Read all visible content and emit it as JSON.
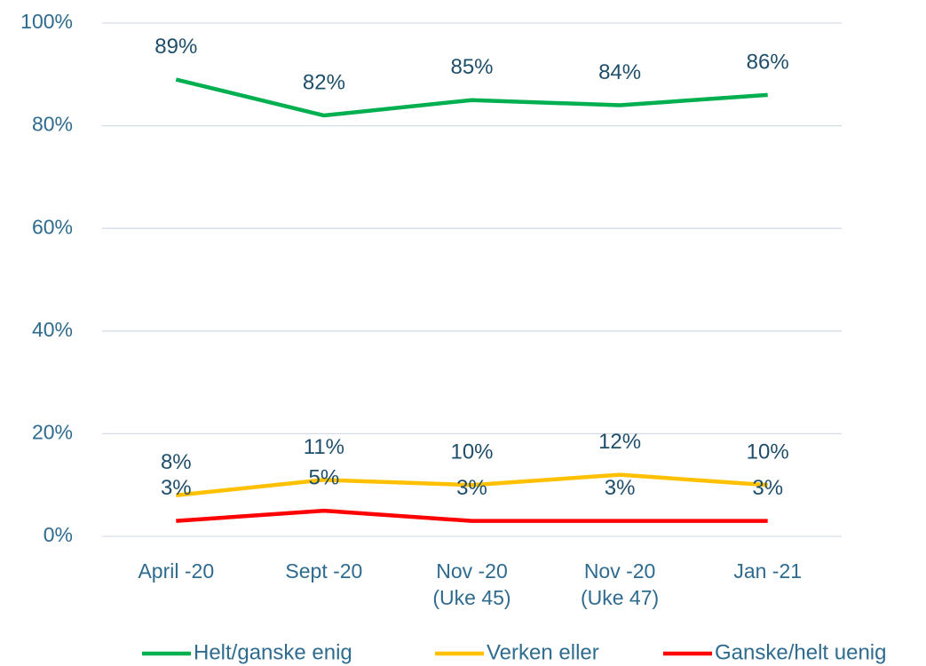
{
  "chart_data": {
    "type": "line",
    "categories": [
      "April -20",
      "Sept -20",
      "Nov -20\n(Uke 45)",
      "Nov -20\n(Uke 47)",
      "Jan -21"
    ],
    "series": [
      {
        "name": "Helt/ganske enig",
        "color": "#00b050",
        "values": [
          89,
          82,
          85,
          84,
          86
        ],
        "value_labels": [
          "89%",
          "82%",
          "85%",
          "84%",
          "86%"
        ]
      },
      {
        "name": "Verken eller",
        "color": "#ffc000",
        "values": [
          8,
          11,
          10,
          12,
          10
        ],
        "value_labels": [
          "8%",
          "11%",
          "10%",
          "12%",
          "10%"
        ]
      },
      {
        "name": "Ganske/helt uenig",
        "color": "#ff0000",
        "values": [
          3,
          5,
          3,
          3,
          3
        ],
        "value_labels": [
          "3%",
          "5%",
          "3%",
          "3%",
          "3%"
        ]
      }
    ],
    "ylim": [
      0,
      100
    ],
    "yticks": [
      {
        "value": 0,
        "label": "0%"
      },
      {
        "value": 20,
        "label": "20%"
      },
      {
        "value": 40,
        "label": "40%"
      },
      {
        "value": 60,
        "label": "60%"
      },
      {
        "value": 80,
        "label": "80%"
      },
      {
        "value": 100,
        "label": "100%"
      }
    ],
    "grid": true,
    "legend": "bottom"
  }
}
